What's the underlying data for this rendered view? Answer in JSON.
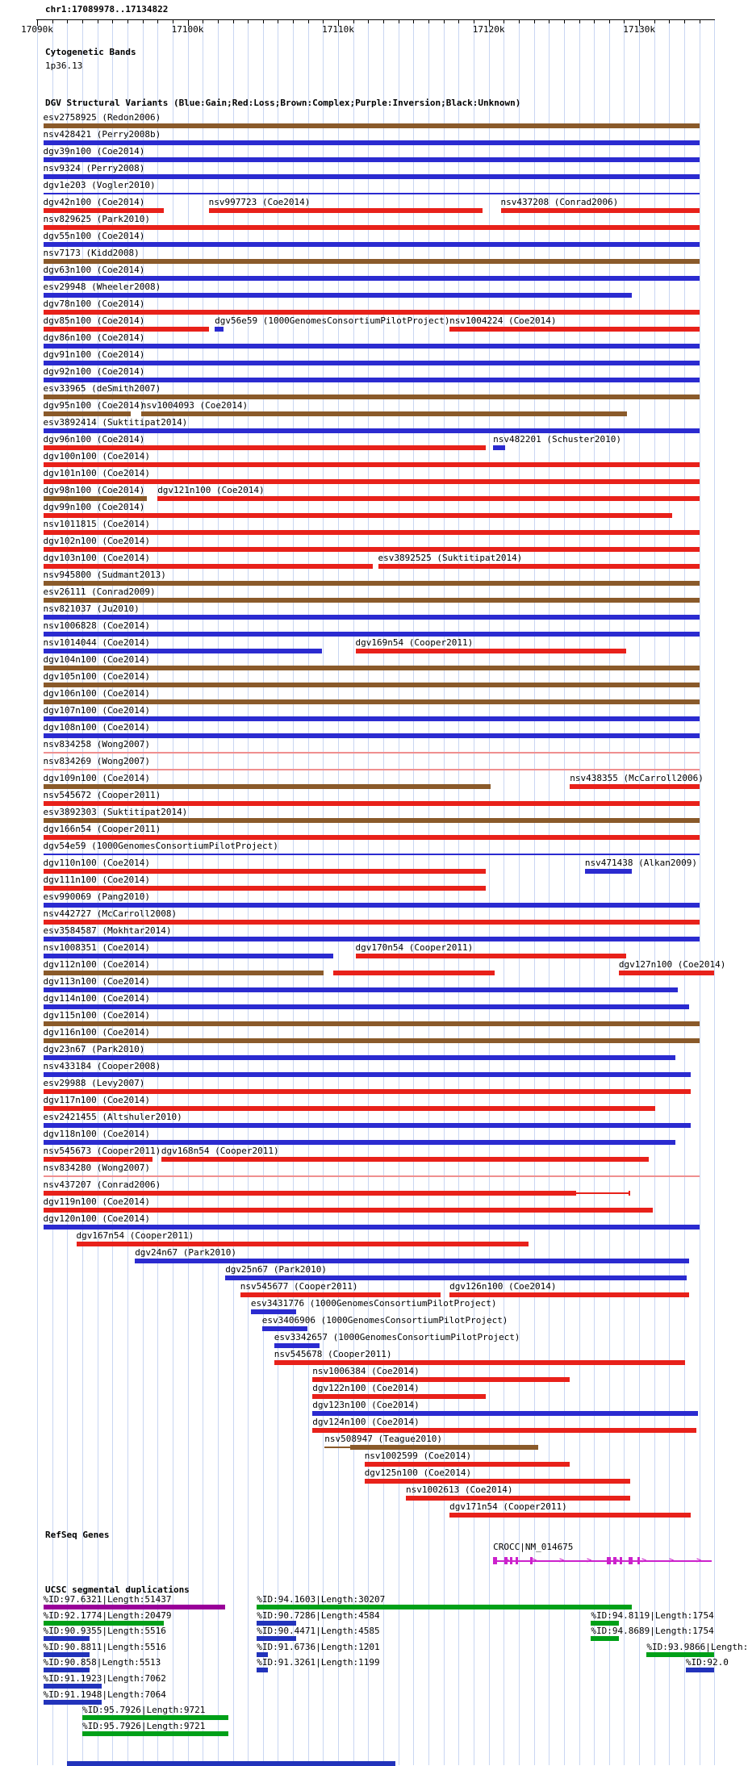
{
  "meta": {
    "position_label": "chr1:17089978..17134822",
    "window_start": 17089978,
    "window_end": 17134822
  },
  "ruler": {
    "minor_tick_bp": 1000,
    "major_ticks": [
      {
        "pos": 17090000,
        "label": "17090k"
      },
      {
        "pos": 17100000,
        "label": "17100k"
      },
      {
        "pos": 17110000,
        "label": "17110k"
      },
      {
        "pos": 17120000,
        "label": "17120k"
      },
      {
        "pos": 17130000,
        "label": "17130k"
      }
    ]
  },
  "colors": {
    "gain": "#2b2bd0",
    "loss": "#e8211a",
    "complex": "#8a5a2a",
    "loss_pale": "#ef8f8f",
    "segdup_purple": "#990099",
    "segdup_green": "#00a018",
    "segdup_navy": "#2233bb",
    "gene": "#cc22cc",
    "gridline": "#c9d6f2",
    "ruler": "#000000"
  },
  "cytobands": {
    "title": "Cytogenetic Bands",
    "band_label": "1p36.13"
  },
  "dgv": {
    "title": "DGV Structural Variants (Blue:Gain;Red:Loss;Brown:Complex;Purple:Inversion;Black:Unknown)",
    "rows": [
      [
        {
          "l": "esv2758925 (Redon2006)",
          "c": "complex",
          "s": 17090400,
          "e": 17134000
        }
      ],
      [
        {
          "l": "nsv428421 (Perry2008b)",
          "c": "gain",
          "s": 17090400,
          "e": 17134000
        }
      ],
      [
        {
          "l": "dgv39n100 (Coe2014)",
          "c": "gain",
          "s": 17090400,
          "e": 17134000
        }
      ],
      [
        {
          "l": "nsv9324 (Perry2008)",
          "c": "gain",
          "s": 17090400,
          "e": 17134000
        }
      ],
      [
        {
          "l": "dgv1e203 (Vogler2010)",
          "c": "gain",
          "s": 17090400,
          "e": 17134000,
          "thin": true
        }
      ],
      [
        {
          "l": "dgv42n100 (Coe2014)",
          "c": "loss",
          "s": 17090400,
          "e": 17098400
        },
        {
          "l": "nsv997723 (Coe2014)",
          "c": "loss",
          "s": 17101400,
          "e": 17119600
        },
        {
          "l": "nsv437208 (Conrad2006)",
          "c": "loss",
          "s": 17120800,
          "e": 17134000
        }
      ],
      [
        {
          "l": "nsv829625 (Park2010)",
          "c": "loss",
          "s": 17090400,
          "e": 17134000
        }
      ],
      [
        {
          "l": "dgv55n100 (Coe2014)",
          "c": "gain",
          "s": 17090400,
          "e": 17134000
        }
      ],
      [
        {
          "l": "nsv7173 (Kidd2008)",
          "c": "complex",
          "s": 17090400,
          "e": 17134000
        }
      ],
      [
        {
          "l": "dgv63n100 (Coe2014)",
          "c": "gain",
          "s": 17090400,
          "e": 17134000
        }
      ],
      [
        {
          "l": "esv29948 (Wheeler2008)",
          "c": "gain",
          "s": 17090400,
          "e": 17129500
        }
      ],
      [
        {
          "l": "dgv78n100 (Coe2014)",
          "c": "loss",
          "s": 17090400,
          "e": 17134000
        }
      ],
      [
        {
          "l": "dgv85n100 (Coe2014)",
          "c": "loss",
          "s": 17090400,
          "e": 17101400
        },
        {
          "l": "dgv56e59 (1000GenomesConsortiumPilotProject)",
          "c": "gain",
          "s": 17101800,
          "e": 17102400
        },
        {
          "l": "nsv1004224 (Coe2014)",
          "c": "loss",
          "s": 17117400,
          "e": 17134000
        }
      ],
      [
        {
          "l": "dgv86n100 (Coe2014)",
          "c": "gain",
          "s": 17090400,
          "e": 17134000
        }
      ],
      [
        {
          "l": "dgv91n100 (Coe2014)",
          "c": "gain",
          "s": 17090400,
          "e": 17134000
        }
      ],
      [
        {
          "l": "dgv92n100 (Coe2014)",
          "c": "gain",
          "s": 17090400,
          "e": 17134000
        }
      ],
      [
        {
          "l": "esv33965 (deSmith2007)",
          "c": "complex",
          "s": 17090400,
          "e": 17134000
        }
      ],
      [
        {
          "l": "dgv95n100 (Coe2014)",
          "c": "complex",
          "s": 17090400,
          "e": 17096200
        },
        {
          "l": "nsv1004093 (Coe2014)",
          "c": "complex",
          "s": 17096900,
          "e": 17129200
        }
      ],
      [
        {
          "l": "esv3892414 (Suktitipat2014)",
          "c": "gain",
          "s": 17090400,
          "e": 17134000
        }
      ],
      [
        {
          "l": "dgv96n100 (Coe2014)",
          "c": "loss",
          "s": 17090400,
          "e": 17119800
        },
        {
          "l": "nsv482201 (Schuster2010)",
          "c": "gain",
          "s": 17120300,
          "e": 17121100
        }
      ],
      [
        {
          "l": "dgv100n100 (Coe2014)",
          "c": "loss",
          "s": 17090400,
          "e": 17134000
        }
      ],
      [
        {
          "l": "dgv101n100 (Coe2014)",
          "c": "loss",
          "s": 17090400,
          "e": 17134000
        }
      ],
      [
        {
          "l": "dgv98n100 (Coe2014)",
          "c": "complex",
          "s": 17090400,
          "e": 17097300
        },
        {
          "l": "dgv121n100 (Coe2014)",
          "c": "loss",
          "s": 17098000,
          "e": 17134000
        }
      ],
      [
        {
          "l": "dgv99n100 (Coe2014)",
          "c": "loss",
          "s": 17090400,
          "e": 17132200
        }
      ],
      [
        {
          "l": "nsv1011815 (Coe2014)",
          "c": "loss",
          "s": 17090400,
          "e": 17134000
        }
      ],
      [
        {
          "l": "dgv102n100 (Coe2014)",
          "c": "loss",
          "s": 17090400,
          "e": 17134000
        }
      ],
      [
        {
          "l": "dgv103n100 (Coe2014)",
          "c": "loss",
          "s": 17090400,
          "e": 17112300
        },
        {
          "l": "esv3892525 (Suktitipat2014)",
          "c": "loss",
          "s": 17112650,
          "e": 17134000
        }
      ],
      [
        {
          "l": "nsv945800 (Sudmant2013)",
          "c": "complex",
          "s": 17090400,
          "e": 17134000
        }
      ],
      [
        {
          "l": "esv26111 (Conrad2009)",
          "c": "complex",
          "s": 17090400,
          "e": 17134000
        }
      ],
      [
        {
          "l": "nsv821037 (Ju2010)",
          "c": "gain",
          "s": 17090400,
          "e": 17134000
        }
      ],
      [
        {
          "l": "nsv1006828 (Coe2014)",
          "c": "gain",
          "s": 17090400,
          "e": 17134000
        }
      ],
      [
        {
          "l": "nsv1014044 (Coe2014)",
          "c": "gain",
          "s": 17090400,
          "e": 17108900
        },
        {
          "l": "dgv169n54 (Cooper2011)",
          "c": "loss",
          "s": 17111150,
          "e": 17129150
        }
      ],
      [
        {
          "l": "dgv104n100 (Coe2014)",
          "c": "complex",
          "s": 17090400,
          "e": 17134000
        }
      ],
      [
        {
          "l": "dgv105n100 (Coe2014)",
          "c": "complex",
          "s": 17090400,
          "e": 17134000
        }
      ],
      [
        {
          "l": "dgv106n100 (Coe2014)",
          "c": "complex",
          "s": 17090400,
          "e": 17134000
        }
      ],
      [
        {
          "l": "dgv107n100 (Coe2014)",
          "c": "gain",
          "s": 17090400,
          "e": 17134000
        }
      ],
      [
        {
          "l": "dgv108n100 (Coe2014)",
          "c": "gain",
          "s": 17090400,
          "e": 17134000
        }
      ],
      [
        {
          "l": "nsv834258 (Wong2007)",
          "c": "loss_pale",
          "s": 17090400,
          "e": 17134000,
          "thin": true
        }
      ],
      [
        {
          "l": "nsv834269 (Wong2007)",
          "c": "loss_pale",
          "s": 17090400,
          "e": 17134000,
          "thin": true
        }
      ],
      [
        {
          "l": "dgv109n100 (Coe2014)",
          "c": "complex",
          "s": 17090400,
          "e": 17120150
        },
        {
          "l": "nsv438355 (McCarroll2006)",
          "c": "loss",
          "s": 17125400,
          "e": 17134000
        }
      ],
      [
        {
          "l": "nsv545672 (Cooper2011)",
          "c": "loss",
          "s": 17090400,
          "e": 17134000
        }
      ],
      [
        {
          "l": "esv3892303 (Suktitipat2014)",
          "c": "complex",
          "s": 17090400,
          "e": 17134000
        }
      ],
      [
        {
          "l": "dgv166n54 (Cooper2011)",
          "c": "loss",
          "s": 17090400,
          "e": 17134000
        }
      ],
      [
        {
          "l": "dgv54e59 (1000GenomesConsortiumPilotProject)",
          "c": "gain",
          "s": 17090400,
          "e": 17134000,
          "thin": true
        }
      ],
      [
        {
          "l": "dgv110n100 (Coe2014)",
          "c": "loss",
          "s": 17090400,
          "e": 17119800
        },
        {
          "l": "nsv471438 (Alkan2009)",
          "c": "gain",
          "s": 17126400,
          "e": 17129500
        }
      ],
      [
        {
          "l": "dgv111n100 (Coe2014)",
          "c": "loss",
          "s": 17090400,
          "e": 17119800
        }
      ],
      [
        {
          "l": "esv990069 (Pang2010)",
          "c": "gain",
          "s": 17090400,
          "e": 17134000
        }
      ],
      [
        {
          "l": "nsv442727 (McCarroll2008)",
          "c": "loss",
          "s": 17090400,
          "e": 17134000
        }
      ],
      [
        {
          "l": "esv3584587 (Mokhtar2014)",
          "c": "gain",
          "s": 17090400,
          "e": 17134000
        }
      ],
      [
        {
          "l": "nsv1008351 (Coe2014)",
          "c": "gain",
          "s": 17090400,
          "e": 17109650
        },
        {
          "l": "dgv170n54 (Cooper2011)",
          "c": "loss",
          "s": 17111150,
          "e": 17129150
        }
      ],
      [
        {
          "l": "dgv112n100 (Coe2014)",
          "c": "complex",
          "s": 17090400,
          "e": 17109050
        },
        {
          "l": "",
          "c": "loss",
          "s": 17109650,
          "e": 17120400
        },
        {
          "l": "dgv127n100 (Coe2014)",
          "c": "loss",
          "s": 17128650,
          "e": 17135000
        }
      ],
      [
        {
          "l": "dgv113n100 (Coe2014)",
          "c": "gain",
          "s": 17090400,
          "e": 17132550
        }
      ],
      [
        {
          "l": "dgv114n100 (Coe2014)",
          "c": "gain",
          "s": 17090400,
          "e": 17133300
        }
      ],
      [
        {
          "l": "dgv115n100 (Coe2014)",
          "c": "complex",
          "s": 17090400,
          "e": 17134000
        }
      ],
      [
        {
          "l": "dgv116n100 (Coe2014)",
          "c": "complex",
          "s": 17090400,
          "e": 17134000
        }
      ],
      [
        {
          "l": "dgv23n67 (Park2010)",
          "c": "gain",
          "s": 17090400,
          "e": 17132400
        }
      ],
      [
        {
          "l": "nsv433184 (Cooper2008)",
          "c": "gain",
          "s": 17090400,
          "e": 17133450
        }
      ],
      [
        {
          "l": "esv29988 (Levy2007)",
          "c": "loss",
          "s": 17090400,
          "e": 17133450
        }
      ],
      [
        {
          "l": "dgv117n100 (Coe2014)",
          "c": "loss",
          "s": 17090400,
          "e": 17131050
        }
      ],
      [
        {
          "l": "esv2421455 (Altshuler2010)",
          "c": "gain",
          "s": 17090400,
          "e": 17133450
        }
      ],
      [
        {
          "l": "dgv118n100 (Coe2014)",
          "c": "gain",
          "s": 17090400,
          "e": 17132400
        }
      ],
      [
        {
          "l": "nsv545673 (Cooper2011)",
          "c": "loss",
          "s": 17090400,
          "e": 17097650
        },
        {
          "l": "dgv168n54 (Cooper2011)",
          "c": "loss",
          "s": 17098250,
          "e": 17130650
        }
      ],
      [
        {
          "l": "nsv834280 (Wong2007)",
          "c": "loss_pale",
          "s": 17090400,
          "e": 17134000,
          "thin": true
        }
      ],
      [
        {
          "l": "nsv437207 (Conrad2006)",
          "c": "loss",
          "s": 17090400,
          "e": 17125800,
          "te": 17129300
        }
      ],
      [
        {
          "l": "dgv119n100 (Coe2014)",
          "c": "loss",
          "s": 17090400,
          "e": 17130900
        }
      ],
      [
        {
          "l": "dgv120n100 (Coe2014)",
          "c": "gain",
          "s": 17090400,
          "e": 17134000
        }
      ],
      [
        {
          "l": "dgv167n54 (Cooper2011)",
          "c": "loss",
          "s": 17092600,
          "e": 17122650
        }
      ],
      [
        {
          "l": "dgv24n67 (Park2010)",
          "c": "gain",
          "s": 17096500,
          "e": 17133300
        }
      ],
      [
        {
          "l": "dgv25n67 (Park2010)",
          "c": "gain",
          "s": 17102500,
          "e": 17133150
        }
      ],
      [
        {
          "l": "nsv545677 (Cooper2011)",
          "c": "loss",
          "s": 17103500,
          "e": 17116800
        },
        {
          "l": "dgv126n100 (Coe2014)",
          "c": "loss",
          "s": 17117400,
          "e": 17133300
        }
      ],
      [
        {
          "l": "esv3431776 (1000GenomesConsortiumPilotProject)",
          "c": "gain",
          "s": 17104200,
          "e": 17107200
        }
      ],
      [
        {
          "l": "esv3406906 (1000GenomesConsortiumPilotProject)",
          "c": "gain",
          "s": 17104950,
          "e": 17107950
        }
      ],
      [
        {
          "l": "esv3342657 (1000GenomesConsortiumPilotProject)",
          "c": "gain",
          "s": 17105750,
          "e": 17108750
        }
      ],
      [
        {
          "l": "nsv545678 (Cooper2011)",
          "c": "loss",
          "s": 17105750,
          "e": 17133050
        }
      ],
      [
        {
          "l": "nsv1006384 (Coe2014)",
          "c": "loss",
          "s": 17108300,
          "e": 17125400
        }
      ],
      [
        {
          "l": "dgv122n100 (Coe2014)",
          "c": "loss",
          "s": 17108300,
          "e": 17119800
        }
      ],
      [
        {
          "l": "dgv123n100 (Coe2014)",
          "c": "gain",
          "s": 17108300,
          "e": 17133900
        }
      ],
      [
        {
          "l": "dgv124n100 (Coe2014)",
          "c": "loss",
          "s": 17108300,
          "e": 17133800
        }
      ],
      [
        {
          "l": "nsv508947 (Teague2010)",
          "c": "complex",
          "s": 17110800,
          "e": 17123300,
          "ls": 17109100
        }
      ],
      [
        {
          "l": "nsv1002599 (Coe2014)",
          "c": "loss",
          "s": 17111750,
          "e": 17125400
        }
      ],
      [
        {
          "l": "dgv125n100 (Coe2014)",
          "c": "loss",
          "s": 17111750,
          "e": 17129400
        }
      ],
      [
        {
          "l": "nsv1002613 (Coe2014)",
          "c": "loss",
          "s": 17114500,
          "e": 17129400
        }
      ],
      [
        {
          "l": "dgv171n54 (Cooper2011)",
          "c": "loss",
          "s": 17117400,
          "e": 17133450
        }
      ]
    ]
  },
  "refseq": {
    "title": "RefSeq Genes",
    "genes": [
      {
        "label": "CROCC|NM_014675",
        "strand": "+",
        "start": 17120300,
        "end": 17134822,
        "exons": [
          [
            17120300,
            17120550
          ],
          [
            17121050,
            17121250
          ],
          [
            17121400,
            17121600
          ],
          [
            17121800,
            17121950
          ],
          [
            17122750,
            17122950
          ],
          [
            17127850,
            17128100
          ],
          [
            17128300,
            17128500
          ],
          [
            17128700,
            17128850
          ],
          [
            17129300,
            17129550
          ],
          [
            17129900,
            17130050
          ]
        ]
      }
    ]
  },
  "segdups": {
    "title": "UCSC segmental duplications",
    "rows": [
      [
        {
          "l": "%ID:97.6321|Length:51437",
          "c": "segdup_purple",
          "s": 17090400,
          "e": 17102500
        },
        {
          "l": "%ID:94.1603|Length:30207",
          "c": "segdup_green",
          "s": 17104600,
          "e": 17129500
        }
      ],
      [
        {
          "l": "%ID:92.1774|Length:20479",
          "c": "segdup_green",
          "s": 17090400,
          "e": 17098400
        },
        {
          "l": "%ID:90.7286|Length:4584",
          "c": "segdup_navy",
          "s": 17104600,
          "e": 17107200
        },
        {
          "l": "%ID:94.8119|Length:1754",
          "c": "segdup_green",
          "s": 17126800,
          "e": 17128650
        }
      ],
      [
        {
          "l": "%ID:90.9355|Length:5516",
          "c": "segdup_navy",
          "s": 17090400,
          "e": 17093500
        },
        {
          "l": "%ID:90.4471|Length:4585",
          "c": "segdup_navy",
          "s": 17104600,
          "e": 17107200
        },
        {
          "l": "%ID:94.8689|Length:1754",
          "c": "segdup_green",
          "s": 17126800,
          "e": 17128650
        }
      ],
      [
        {
          "l": "%ID:90.8811|Length:5516",
          "c": "segdup_navy",
          "s": 17090400,
          "e": 17093500
        },
        {
          "l": "%ID:91.6736|Length:1201",
          "c": "segdup_navy",
          "s": 17104600,
          "e": 17105350
        },
        {
          "l": "%ID:93.9866|Length:",
          "c": "segdup_green",
          "s": 17130500,
          "e": 17135000
        }
      ],
      [
        {
          "l": "%ID:90.858|Length:5513",
          "c": "segdup_navy",
          "s": 17090400,
          "e": 17093500
        },
        {
          "l": "%ID:91.3261|Length:1199",
          "c": "segdup_navy",
          "s": 17104600,
          "e": 17105350
        },
        {
          "l": "%ID:92.0",
          "c": "segdup_navy",
          "s": 17133100,
          "e": 17135000
        }
      ],
      [
        {
          "l": "%ID:91.1923|Length:7062",
          "c": "segdup_navy",
          "s": 17090400,
          "e": 17094300
        }
      ],
      [
        {
          "l": "%ID:91.1948|Length:7064",
          "c": "segdup_navy",
          "s": 17090400,
          "e": 17094300
        }
      ],
      [
        {
          "l": "%ID:95.7926|Length:9721",
          "c": "segdup_green",
          "s": 17093000,
          "e": 17102700
        }
      ],
      [
        {
          "l": "%ID:95.7926|Length:9721",
          "c": "segdup_green",
          "s": 17093000,
          "e": 17102700
        }
      ]
    ],
    "partial_bottom_bar": {
      "c": "segdup_navy",
      "s": 17092000,
      "e": 17113800
    }
  }
}
